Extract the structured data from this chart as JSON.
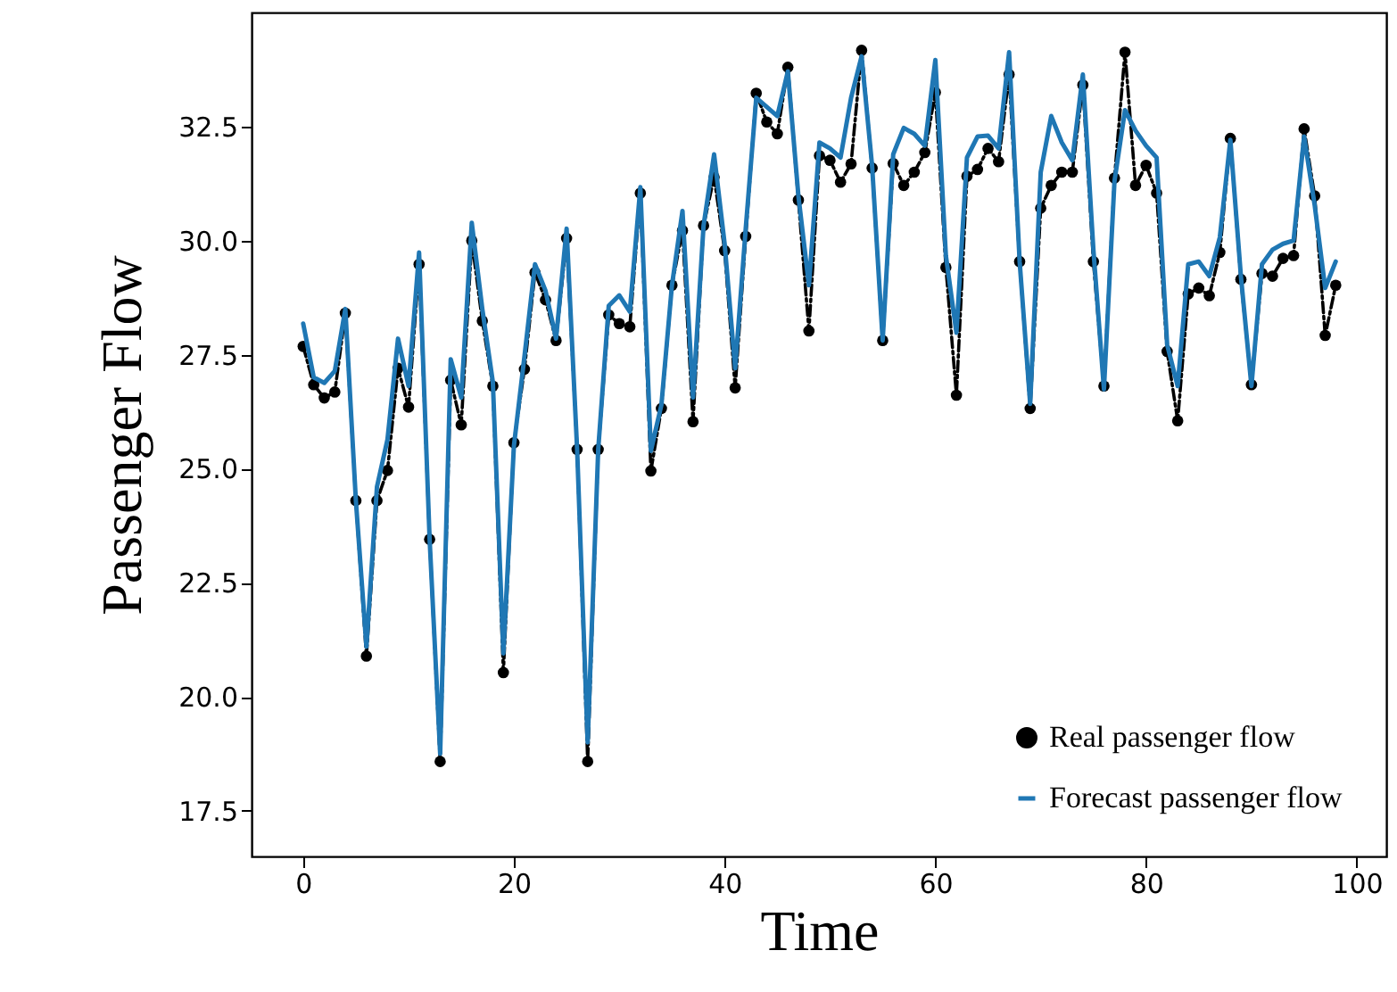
{
  "chart_data": {
    "type": "line",
    "xlabel": "Time",
    "ylabel": "Passenger Flow",
    "xlim": [
      -4.9,
      102.8
    ],
    "ylim": [
      16.5,
      35.0
    ],
    "xticks": [
      0,
      20,
      40,
      60,
      80,
      100
    ],
    "yticks": [
      17.5,
      {
        "value": 20,
        "label": "20.0"
      },
      22.5,
      {
        "value": 25,
        "label": "25.0"
      },
      27.5,
      {
        "value": 30,
        "label": "30.0"
      },
      32.5
    ],
    "grid": false,
    "legend": "bottom right",
    "x": [
      0,
      1,
      2,
      3,
      4,
      5,
      6,
      7,
      8,
      9,
      10,
      11,
      12,
      13,
      14,
      15,
      16,
      17,
      18,
      19,
      20,
      21,
      22,
      23,
      24,
      25,
      26,
      27,
      28,
      29,
      30,
      31,
      32,
      33,
      34,
      35,
      36,
      37,
      38,
      39,
      40,
      41,
      42,
      43,
      44,
      45,
      46,
      47,
      48,
      49,
      50,
      51,
      52,
      53,
      54,
      55,
      56,
      57,
      58,
      59,
      60,
      61,
      62,
      63,
      64,
      65,
      66,
      67,
      68,
      69,
      70,
      71,
      72,
      73,
      74,
      75,
      76,
      77,
      78,
      79,
      80,
      81,
      82,
      83,
      84,
      85,
      86,
      87,
      88,
      89,
      90,
      91,
      92,
      93,
      94,
      95,
      96,
      97,
      98
    ],
    "series": [
      {
        "name": "Real passenger flow",
        "marker": "circle",
        "line_style": "dashed",
        "color": "#000000",
        "values": [
          27.68,
          26.84,
          26.55,
          26.68,
          28.41,
          24.3,
          20.89,
          24.3,
          24.96,
          27.2,
          26.35,
          29.48,
          23.45,
          18.58,
          26.94,
          25.96,
          30.0,
          28.24,
          26.81,
          20.53,
          25.57,
          27.18,
          29.3,
          28.7,
          27.81,
          30.05,
          25.42,
          18.58,
          25.42,
          28.37,
          28.18,
          28.11,
          31.04,
          24.95,
          26.32,
          29.02,
          30.22,
          26.03,
          30.33,
          31.39,
          29.78,
          26.77,
          30.09,
          33.23,
          32.6,
          32.34,
          33.8,
          30.89,
          28.02,
          31.86,
          31.76,
          31.28,
          31.68,
          34.17,
          31.59,
          27.81,
          31.69,
          31.21,
          31.5,
          31.93,
          33.25,
          29.41,
          26.61,
          31.41,
          31.56,
          32.02,
          31.73,
          33.64,
          29.54,
          26.32,
          30.71,
          31.21,
          31.5,
          31.5,
          33.41,
          29.54,
          26.81,
          31.37,
          34.13,
          31.21,
          31.65,
          31.04,
          27.57,
          26.05,
          28.83,
          28.96,
          28.79,
          29.74,
          32.24,
          29.15,
          26.84,
          29.28,
          29.22,
          29.61,
          29.67,
          32.45,
          30.98,
          27.92,
          29.02
        ]
      },
      {
        "name": "Forecast passenger flow",
        "marker": "none",
        "line_style": "solid",
        "color": "#1f77b4",
        "values": [
          28.18,
          27.0,
          26.88,
          27.14,
          28.5,
          24.3,
          21.1,
          24.6,
          25.64,
          27.85,
          26.81,
          29.74,
          23.45,
          18.75,
          27.4,
          26.56,
          30.39,
          28.5,
          26.9,
          20.95,
          25.5,
          27.46,
          29.48,
          28.9,
          27.85,
          30.26,
          25.42,
          19.0,
          25.42,
          28.57,
          28.8,
          28.44,
          31.17,
          25.39,
          26.4,
          29.02,
          30.65,
          26.56,
          30.33,
          31.89,
          29.93,
          27.2,
          30.26,
          33.13,
          32.93,
          32.73,
          33.71,
          30.98,
          29.02,
          32.15,
          32.02,
          31.82,
          33.13,
          34.04,
          31.63,
          27.81,
          31.89,
          32.47,
          32.34,
          32.08,
          33.96,
          29.67,
          27.98,
          31.82,
          32.28,
          32.3,
          32.02,
          34.13,
          29.54,
          26.42,
          31.5,
          32.73,
          32.15,
          31.76,
          33.64,
          29.8,
          26.74,
          31.3,
          32.86,
          32.41,
          32.08,
          31.82,
          27.72,
          26.81,
          29.48,
          29.54,
          29.22,
          30.07,
          32.21,
          29.22,
          26.81,
          29.48,
          29.8,
          29.93,
          30.0,
          32.28,
          30.78,
          28.96,
          29.54
        ]
      }
    ]
  }
}
